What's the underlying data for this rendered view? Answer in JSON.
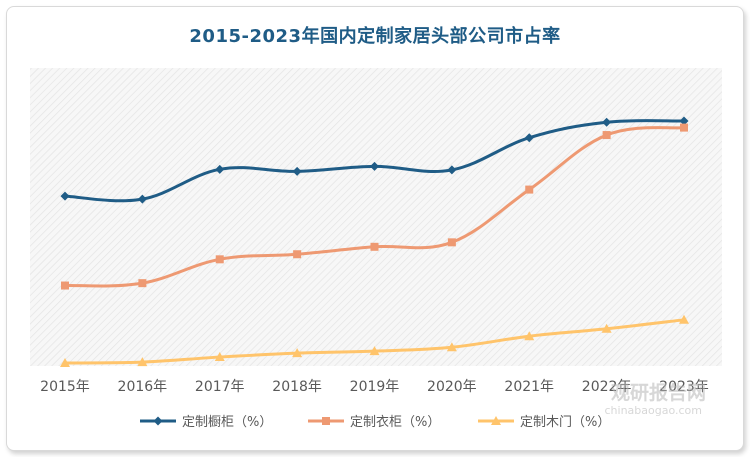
{
  "title": "2015-2023年国内定制家居头部公司市占率",
  "watermark": {
    "main": "观研报告网",
    "url": "chinabaogao.com"
  },
  "chart_data": {
    "type": "line",
    "title": "2015-2023年国内定制家居头部公司市占率",
    "xlabel": "",
    "ylabel": "",
    "categories": [
      "2015年",
      "2016年",
      "2017年",
      "2018年",
      "2019年",
      "2020年",
      "2021年",
      "2022年",
      "2023年"
    ],
    "ylim": [
      0,
      100
    ],
    "grid": false,
    "legend_position": "bottom",
    "series": [
      {
        "name": "定制橱柜（%）",
        "color": "#1f5c86",
        "marker": "diamond",
        "values": [
          57.0,
          56.0,
          66.0,
          65.3,
          67.0,
          65.8,
          76.6,
          81.8,
          82.2
        ]
      },
      {
        "name": "定制衣柜（%）",
        "color": "#ee9972",
        "marker": "square",
        "values": [
          27.0,
          27.8,
          35.8,
          37.5,
          40.0,
          41.5,
          59.2,
          77.5,
          80.0
        ]
      },
      {
        "name": "定制木门（%）",
        "color": "#ffc46b",
        "marker": "triangle",
        "values": [
          1.0,
          1.3,
          3.0,
          4.3,
          5.0,
          6.3,
          10.0,
          12.5,
          15.5
        ]
      }
    ]
  }
}
